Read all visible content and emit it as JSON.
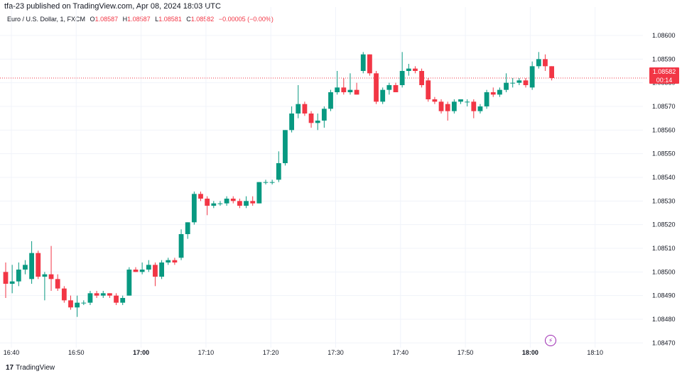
{
  "header": {
    "published": "tfa-23 published on TradingView.com, Apr 08, 2024 18:03 UTC"
  },
  "legend": {
    "symbol": "Euro / U.S. Dollar, 1, FXCM",
    "o_label": "O",
    "o_value": "1.08587",
    "h_label": "H",
    "h_value": "1.08587",
    "l_label": "L",
    "l_value": "1.08581",
    "c_label": "C",
    "c_value": "1.08582",
    "change": "−0.00005 (−0.00%)"
  },
  "badge": {
    "price": "1.08582",
    "countdown": "00:14"
  },
  "brand": {
    "name": "TradingView"
  },
  "colors": {
    "up": "#089981",
    "down": "#f23645",
    "grid": "#f0f3fa"
  },
  "chart_data": {
    "type": "candlestick",
    "ylim": [
      1.08468,
      1.08606
    ],
    "y_ticks": [
      "1.08600",
      "1.08590",
      "1.08580",
      "1.08570",
      "1.08560",
      "1.08550",
      "1.08540",
      "1.08530",
      "1.08520",
      "1.08510",
      "1.08500",
      "1.08490",
      "1.08480",
      "1.08470"
    ],
    "x_ticks": [
      {
        "label": "16:40",
        "bold": false
      },
      {
        "label": "16:50",
        "bold": false
      },
      {
        "label": "17:00",
        "bold": true
      },
      {
        "label": "17:10",
        "bold": false
      },
      {
        "label": "17:20",
        "bold": false
      },
      {
        "label": "17:30",
        "bold": false
      },
      {
        "label": "17:40",
        "bold": false
      },
      {
        "label": "17:50",
        "bold": false
      },
      {
        "label": "18:00",
        "bold": true
      },
      {
        "label": "18:10",
        "bold": false
      }
    ],
    "last_price": 1.08582,
    "candles": [
      {
        "o": 1.085,
        "h": 1.08504,
        "l": 1.08489,
        "c": 1.08495
      },
      {
        "o": 1.08495,
        "h": 1.08503,
        "l": 1.08491,
        "c": 1.08496
      },
      {
        "o": 1.08496,
        "h": 1.08504,
        "l": 1.08494,
        "c": 1.08501
      },
      {
        "o": 1.08501,
        "h": 1.08505,
        "l": 1.08499,
        "c": 1.08503
      },
      {
        "o": 1.08497,
        "h": 1.08513,
        "l": 1.08495,
        "c": 1.08508
      },
      {
        "o": 1.08508,
        "h": 1.08509,
        "l": 1.08497,
        "c": 1.08498
      },
      {
        "o": 1.08498,
        "h": 1.085,
        "l": 1.08488,
        "c": 1.08499
      },
      {
        "o": 1.08499,
        "h": 1.08511,
        "l": 1.08492,
        "c": 1.08497
      },
      {
        "o": 1.08497,
        "h": 1.08499,
        "l": 1.08492,
        "c": 1.08493
      },
      {
        "o": 1.08493,
        "h": 1.08494,
        "l": 1.08487,
        "c": 1.08488
      },
      {
        "o": 1.08488,
        "h": 1.0849,
        "l": 1.08484,
        "c": 1.08485
      },
      {
        "o": 1.08485,
        "h": 1.0849,
        "l": 1.08481,
        "c": 1.08487
      },
      {
        "o": 1.08487,
        "h": 1.08488,
        "l": 1.08486,
        "c": 1.08487
      },
      {
        "o": 1.08487,
        "h": 1.08492,
        "l": 1.08486,
        "c": 1.08491
      },
      {
        "o": 1.08491,
        "h": 1.08492,
        "l": 1.08489,
        "c": 1.0849
      },
      {
        "o": 1.0849,
        "h": 1.08492,
        "l": 1.08489,
        "c": 1.08491
      },
      {
        "o": 1.08491,
        "h": 1.08491,
        "l": 1.08489,
        "c": 1.0849
      },
      {
        "o": 1.0849,
        "h": 1.08491,
        "l": 1.08486,
        "c": 1.08487
      },
      {
        "o": 1.08487,
        "h": 1.0849,
        "l": 1.08486,
        "c": 1.08489
      },
      {
        "o": 1.0849,
        "h": 1.08502,
        "l": 1.0849,
        "c": 1.08501
      },
      {
        "o": 1.08501,
        "h": 1.08502,
        "l": 1.085,
        "c": 1.085
      },
      {
        "o": 1.085,
        "h": 1.08504,
        "l": 1.08499,
        "c": 1.08501
      },
      {
        "o": 1.08501,
        "h": 1.08505,
        "l": 1.085,
        "c": 1.08503
      },
      {
        "o": 1.08503,
        "h": 1.08504,
        "l": 1.08494,
        "c": 1.08498
      },
      {
        "o": 1.08498,
        "h": 1.08505,
        "l": 1.08497,
        "c": 1.08504
      },
      {
        "o": 1.08504,
        "h": 1.08506,
        "l": 1.08503,
        "c": 1.08505
      },
      {
        "o": 1.08505,
        "h": 1.08506,
        "l": 1.08503,
        "c": 1.08504
      },
      {
        "o": 1.08506,
        "h": 1.08518,
        "l": 1.08505,
        "c": 1.08516
      },
      {
        "o": 1.08516,
        "h": 1.08521,
        "l": 1.08514,
        "c": 1.08521
      },
      {
        "o": 1.08521,
        "h": 1.08534,
        "l": 1.0852,
        "c": 1.08533
      },
      {
        "o": 1.08533,
        "h": 1.08534,
        "l": 1.0853,
        "c": 1.08531
      },
      {
        "o": 1.08531,
        "h": 1.08532,
        "l": 1.08524,
        "c": 1.08528
      },
      {
        "o": 1.08528,
        "h": 1.0853,
        "l": 1.08527,
        "c": 1.08529
      },
      {
        "o": 1.08529,
        "h": 1.0853,
        "l": 1.08528,
        "c": 1.08529
      },
      {
        "o": 1.08529,
        "h": 1.08532,
        "l": 1.08528,
        "c": 1.08531
      },
      {
        "o": 1.08531,
        "h": 1.08532,
        "l": 1.08529,
        "c": 1.0853
      },
      {
        "o": 1.0853,
        "h": 1.08531,
        "l": 1.08527,
        "c": 1.08528
      },
      {
        "o": 1.08528,
        "h": 1.08532,
        "l": 1.08527,
        "c": 1.0853
      },
      {
        "o": 1.0853,
        "h": 1.08532,
        "l": 1.08528,
        "c": 1.08529
      },
      {
        "o": 1.08529,
        "h": 1.08538,
        "l": 1.08529,
        "c": 1.08538
      },
      {
        "o": 1.08538,
        "h": 1.08539,
        "l": 1.08537,
        "c": 1.08538
      },
      {
        "o": 1.08538,
        "h": 1.08539,
        "l": 1.08537,
        "c": 1.08538
      },
      {
        "o": 1.08539,
        "h": 1.08551,
        "l": 1.08538,
        "c": 1.08546
      },
      {
        "o": 1.08546,
        "h": 1.0856,
        "l": 1.08545,
        "c": 1.0856
      },
      {
        "o": 1.0856,
        "h": 1.0857,
        "l": 1.08559,
        "c": 1.08567
      },
      {
        "o": 1.08567,
        "h": 1.08579,
        "l": 1.08565,
        "c": 1.08571
      },
      {
        "o": 1.08571,
        "h": 1.08572,
        "l": 1.08566,
        "c": 1.08567
      },
      {
        "o": 1.08567,
        "h": 1.08568,
        "l": 1.08561,
        "c": 1.08563
      },
      {
        "o": 1.08563,
        "h": 1.08567,
        "l": 1.0856,
        "c": 1.08564
      },
      {
        "o": 1.08564,
        "h": 1.0857,
        "l": 1.08561,
        "c": 1.08569
      },
      {
        "o": 1.08569,
        "h": 1.08577,
        "l": 1.08568,
        "c": 1.08576
      },
      {
        "o": 1.08576,
        "h": 1.08585,
        "l": 1.08575,
        "c": 1.08578
      },
      {
        "o": 1.08578,
        "h": 1.08582,
        "l": 1.08575,
        "c": 1.08576
      },
      {
        "o": 1.08576,
        "h": 1.08584,
        "l": 1.08575,
        "c": 1.08577
      },
      {
        "o": 1.08577,
        "h": 1.0858,
        "l": 1.08575,
        "c": 1.08575
      },
      {
        "o": 1.08585,
        "h": 1.08593,
        "l": 1.08584,
        "c": 1.08592
      },
      {
        "o": 1.08592,
        "h": 1.08592,
        "l": 1.08583,
        "c": 1.08584
      },
      {
        "o": 1.08584,
        "h": 1.08585,
        "l": 1.08571,
        "c": 1.08572
      },
      {
        "o": 1.08572,
        "h": 1.08578,
        "l": 1.08571,
        "c": 1.08577
      },
      {
        "o": 1.08577,
        "h": 1.0858,
        "l": 1.08575,
        "c": 1.08579
      },
      {
        "o": 1.08579,
        "h": 1.0858,
        "l": 1.08576,
        "c": 1.08576
      },
      {
        "o": 1.08579,
        "h": 1.08593,
        "l": 1.08578,
        "c": 1.08585
      },
      {
        "o": 1.08585,
        "h": 1.08588,
        "l": 1.08583,
        "c": 1.08586
      },
      {
        "o": 1.08586,
        "h": 1.08587,
        "l": 1.08584,
        "c": 1.08585
      },
      {
        "o": 1.08585,
        "h": 1.08586,
        "l": 1.08578,
        "c": 1.08579
      },
      {
        "o": 1.08581,
        "h": 1.08582,
        "l": 1.08572,
        "c": 1.08573
      },
      {
        "o": 1.08573,
        "h": 1.08574,
        "l": 1.08571,
        "c": 1.08572
      },
      {
        "o": 1.08572,
        "h": 1.08573,
        "l": 1.08567,
        "c": 1.08568
      },
      {
        "o": 1.08571,
        "h": 1.08572,
        "l": 1.08564,
        "c": 1.08568
      },
      {
        "o": 1.08568,
        "h": 1.08573,
        "l": 1.08567,
        "c": 1.08572
      },
      {
        "o": 1.08572,
        "h": 1.08573,
        "l": 1.08571,
        "c": 1.08573
      },
      {
        "o": 1.08572,
        "h": 1.08573,
        "l": 1.0857,
        "c": 1.08572
      },
      {
        "o": 1.08572,
        "h": 1.08573,
        "l": 1.08565,
        "c": 1.08568
      },
      {
        "o": 1.08568,
        "h": 1.08571,
        "l": 1.08567,
        "c": 1.0857
      },
      {
        "o": 1.0857,
        "h": 1.08577,
        "l": 1.08569,
        "c": 1.08576
      },
      {
        "o": 1.08576,
        "h": 1.08578,
        "l": 1.08574,
        "c": 1.08575
      },
      {
        "o": 1.08575,
        "h": 1.08578,
        "l": 1.08574,
        "c": 1.08577
      },
      {
        "o": 1.08577,
        "h": 1.08584,
        "l": 1.08576,
        "c": 1.0858
      },
      {
        "o": 1.0858,
        "h": 1.08582,
        "l": 1.08578,
        "c": 1.0858
      },
      {
        "o": 1.0858,
        "h": 1.08582,
        "l": 1.08579,
        "c": 1.08581
      },
      {
        "o": 1.08581,
        "h": 1.08582,
        "l": 1.08578,
        "c": 1.08579
      },
      {
        "o": 1.08578,
        "h": 1.08589,
        "l": 1.08577,
        "c": 1.08587
      },
      {
        "o": 1.08587,
        "h": 1.08593,
        "l": 1.08586,
        "c": 1.0859
      },
      {
        "o": 1.0859,
        "h": 1.08592,
        "l": 1.08585,
        "c": 1.08587
      },
      {
        "o": 1.08587,
        "h": 1.08587,
        "l": 1.08581,
        "c": 1.08582
      }
    ]
  }
}
